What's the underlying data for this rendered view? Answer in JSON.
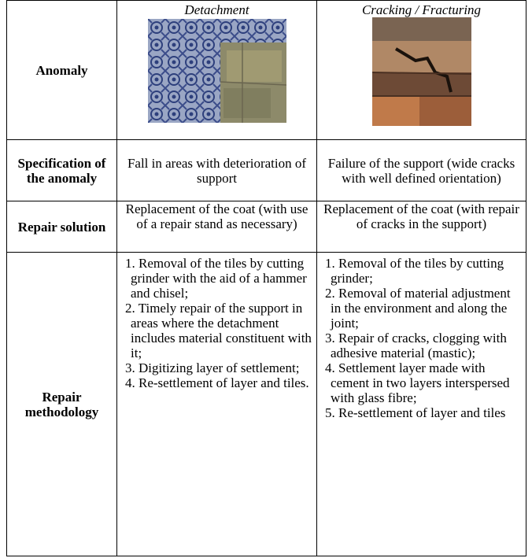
{
  "table": {
    "header": {
      "label": "Anomaly",
      "columns": [
        "Detachment",
        "Cracking / Fracturing"
      ]
    },
    "rows": [
      {
        "label": "Specification of the anomaly",
        "cells": [
          "Fall in areas with deterioration of support",
          "Failure of the support (wide cracks with well defined orientation)"
        ]
      },
      {
        "label": "Repair solution",
        "cells": [
          "Replacement of the coat (with use of a repair stand as necessary)",
          "Replacement of the coat (with repair of cracks in the support)"
        ]
      },
      {
        "label": "Repair methodology",
        "cells": [
          [
            "1. Removal of the tiles by cutting grinder with the aid of a hammer and chisel;",
            "2. Timely repair of the support in areas where the detachment includes material constituent with it;",
            "3. Digitizing layer of settlement;",
            "4. Re-settlement of layer and tiles."
          ],
          [
            "1. Removal of the tiles by cutting grinder;",
            "2. Removal of material adjustment in the environment and along the joint;",
            "3. Repair of cracks, clogging with adhesive material (mastic);",
            "4. Settlement layer made with cement in two layers interspersed with glass fibre;",
            "5. Re-settlement of layer and tiles"
          ]
        ]
      }
    ]
  }
}
